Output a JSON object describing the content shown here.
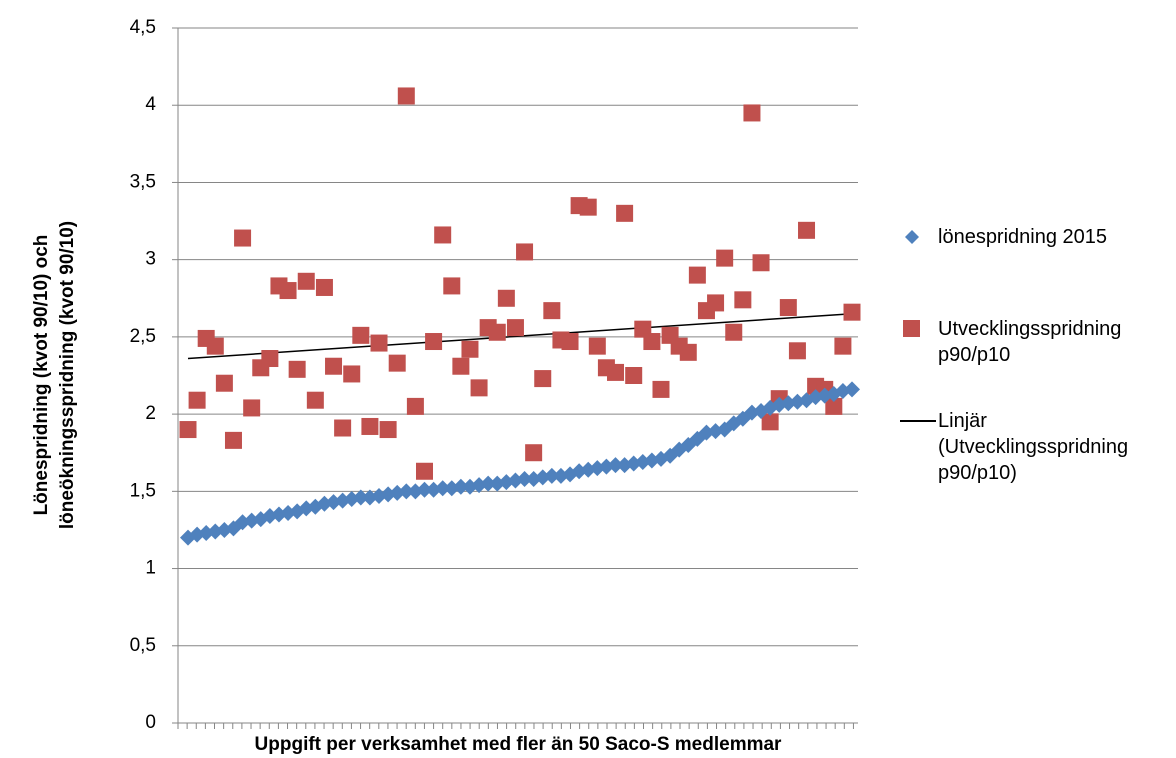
{
  "chart_data": {
    "type": "scatter",
    "y_axis_label": "Lönespridning (kvot 90/10) och löneökningsspridning (kvot 90/10)",
    "x_axis_label": "Uppgift per verksamhet med fler än 50 Saco-S medlemmar",
    "categories": [
      null,
      null,
      null,
      null,
      null,
      null,
      null,
      null,
      null,
      null,
      null,
      null,
      null,
      null,
      null,
      null,
      null,
      null,
      null,
      null,
      null,
      null,
      null,
      null,
      null,
      null,
      null,
      null,
      null,
      null,
      null,
      null,
      null,
      null,
      null,
      null,
      null,
      null,
      null,
      null,
      null,
      null,
      null,
      null,
      null,
      null,
      null,
      null,
      null,
      null,
      null,
      null,
      null,
      null,
      null,
      null,
      null,
      null,
      null,
      null,
      null,
      null,
      null,
      null,
      null,
      null,
      null,
      null,
      null,
      null,
      null,
      null,
      null,
      null
    ],
    "series": [
      {
        "name": "lönespridning 2015",
        "color": "#4f81bd",
        "marker": "diamond",
        "values": [
          1.2,
          1.22,
          1.23,
          1.24,
          1.25,
          1.26,
          1.3,
          1.31,
          1.32,
          1.34,
          1.35,
          1.36,
          1.37,
          1.39,
          1.4,
          1.42,
          1.43,
          1.44,
          1.45,
          1.46,
          1.46,
          1.47,
          1.48,
          1.49,
          1.5,
          1.5,
          1.51,
          1.51,
          1.52,
          1.52,
          1.53,
          1.53,
          1.54,
          1.55,
          1.55,
          1.56,
          1.57,
          1.58,
          1.58,
          1.59,
          1.6,
          1.6,
          1.61,
          1.63,
          1.64,
          1.65,
          1.66,
          1.67,
          1.67,
          1.68,
          1.69,
          1.7,
          1.71,
          1.73,
          1.77,
          1.8,
          1.84,
          1.88,
          1.89,
          1.9,
          1.94,
          1.97,
          2.01,
          2.02,
          2.04,
          2.06,
          2.07,
          2.08,
          2.09,
          2.11,
          2.12,
          2.13,
          2.15,
          2.16
        ]
      },
      {
        "name": "Utvecklingsspridning p90/p10",
        "color": "#c0504d",
        "marker": "square",
        "values": [
          1.9,
          2.09,
          2.49,
          2.44,
          2.2,
          1.83,
          3.14,
          2.04,
          2.3,
          2.36,
          2.83,
          2.8,
          2.29,
          2.86,
          2.09,
          2.82,
          2.31,
          1.91,
          2.26,
          2.51,
          1.92,
          2.46,
          1.9,
          2.33,
          4.06,
          2.05,
          1.63,
          2.47,
          3.16,
          2.83,
          2.31,
          2.42,
          2.17,
          2.56,
          2.53,
          2.75,
          2.56,
          3.05,
          1.75,
          2.23,
          2.67,
          2.48,
          2.47,
          3.35,
          3.34,
          2.44,
          2.3,
          2.27,
          3.3,
          2.25,
          2.55,
          2.47,
          2.16,
          2.51,
          2.44,
          2.4,
          2.9,
          2.67,
          2.72,
          3.01,
          2.53,
          2.74,
          3.95,
          2.98,
          1.95,
          2.1,
          2.69,
          2.41,
          3.19,
          2.18,
          2.16,
          2.05,
          2.44,
          2.66
        ]
      }
    ],
    "trendline": {
      "name": "Linjär (Utvecklingsspridning p90/p10)",
      "color": "#000000",
      "start": 2.36,
      "end": 2.65
    },
    "ylim": [
      0,
      4.5
    ],
    "yticks": [
      0,
      {
        "value": 0.5,
        "label": "0,5"
      },
      1,
      {
        "value": 1.5,
        "label": "1,5"
      },
      2,
      {
        "value": 2.5,
        "label": "2,5"
      },
      3,
      {
        "value": 3.5,
        "label": "3,5"
      },
      4,
      {
        "value": 4.5,
        "label": "4,5"
      }
    ],
    "grid": true
  }
}
